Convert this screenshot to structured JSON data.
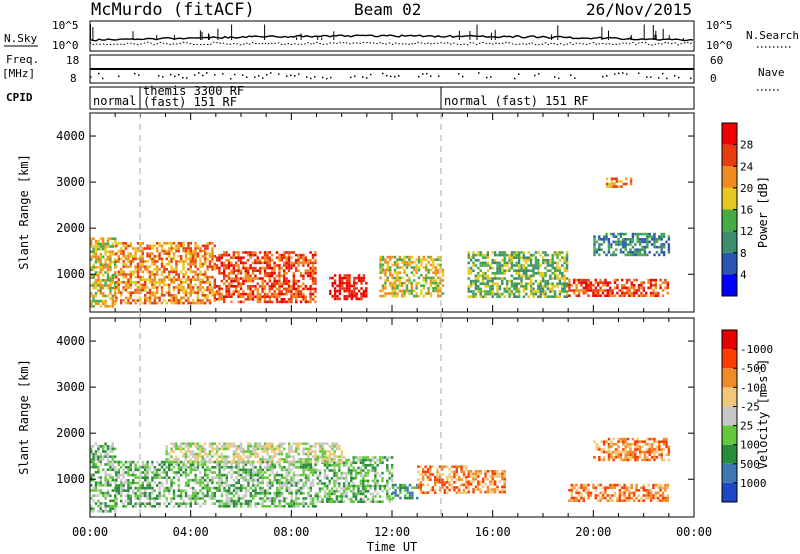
{
  "header": {
    "station": "McMurdo (fitACF)",
    "beam": "Beam 02",
    "date": "26/Nov/2015"
  },
  "strips": {
    "nsky_label": "N.Sky",
    "nsky_hi": "10^5",
    "nsky_lo": "10^0",
    "nsearch_hi": "10^5",
    "nsearch_lo": "10^0",
    "nsearch_label": "N.Search",
    "freq_label": "Freq.",
    "freq_unit": "[MHz]",
    "freq_hi": "18",
    "freq_lo": "8",
    "nave_hi": "60",
    "nave_lo": "0",
    "nave_label": "Nave",
    "cpid_label": "CPID",
    "cpid_segments": [
      {
        "label": "normal",
        "start_hour": 0,
        "end_hour": 2
      },
      {
        "label": "themis 3300 RF",
        "start_hour": 2,
        "end_hour": 14
      },
      {
        "label": "(fast) 151 RF",
        "start_hour": 2,
        "end_hour": 14
      },
      {
        "label": "normal (fast) 151 RF",
        "start_hour": 14,
        "end_hour": 24
      }
    ]
  },
  "chart_data": [
    {
      "type": "heatmap",
      "quantity": "power",
      "ylabel": "Slant Range [km]",
      "ylim": [
        180,
        4500
      ],
      "yticks": [
        "1000",
        "2000",
        "3000",
        "4000"
      ],
      "xlim_hours": [
        0,
        24
      ],
      "colorbar_label": "Power [dB]",
      "colorbar_ticks": [
        "4",
        "8",
        "12",
        "16",
        "20",
        "24",
        "28"
      ],
      "colorbar_colors": [
        "#0000ff",
        "#2a55b4",
        "#3c8c6e",
        "#46aa46",
        "#e6c81e",
        "#f08c1e",
        "#e63c0f",
        "#f00000"
      ],
      "regions": [
        {
          "start_hour": 0.0,
          "end_hour": 1.0,
          "range_km": [
            300,
            1800
          ],
          "level": 4
        },
        {
          "start_hour": 1.0,
          "end_hour": 5.0,
          "range_km": [
            350,
            1700
          ],
          "level": 5
        },
        {
          "start_hour": 5.0,
          "end_hour": 9.0,
          "range_km": [
            400,
            1500
          ],
          "level": 6
        },
        {
          "start_hour": 9.5,
          "end_hour": 11.0,
          "range_km": [
            450,
            1000
          ],
          "level": 7
        },
        {
          "start_hour": 11.5,
          "end_hour": 14.0,
          "range_km": [
            500,
            1400
          ],
          "level": 4
        },
        {
          "start_hour": 15.0,
          "end_hour": 19.0,
          "range_km": [
            500,
            1500
          ],
          "level": 3
        },
        {
          "start_hour": 19.0,
          "end_hour": 23.0,
          "range_km": [
            550,
            900
          ],
          "level": 6
        },
        {
          "start_hour": 20.0,
          "end_hour": 23.0,
          "range_km": [
            1400,
            1900
          ],
          "level": 2
        },
        {
          "start_hour": 20.5,
          "end_hour": 21.5,
          "range_km": [
            2900,
            3100
          ],
          "level": 5
        }
      ]
    },
    {
      "type": "heatmap",
      "quantity": "velocity",
      "ylabel": "Slant Range [km]",
      "ylim": [
        180,
        4500
      ],
      "yticks": [
        "1000",
        "2000",
        "3000",
        "4000"
      ],
      "xlim_hours": [
        0,
        24
      ],
      "colorbar_label": "Velocity [m s",
      "colorbar_label_superscript": "-1",
      "colorbar_label_close": "]",
      "colorbar_ticks": [
        "1000",
        "500",
        "100",
        "25",
        "-25",
        "-100",
        "-500",
        "-1000"
      ],
      "colorbar_colors": [
        "#1e46c8",
        "#3c78b4",
        "#288c3c",
        "#64c83c",
        "#c8c8c8",
        "#f0c878",
        "#f08c28",
        "#ff3c00",
        "#e60000"
      ],
      "regions": [
        {
          "start_hour": 0.0,
          "end_hour": 1.0,
          "range_km": [
            300,
            1800
          ],
          "level": 3
        },
        {
          "start_hour": 1.0,
          "end_hour": 9.0,
          "range_km": [
            400,
            1400
          ],
          "level": 3
        },
        {
          "start_hour": 9.0,
          "end_hour": 12.0,
          "range_km": [
            500,
            1500
          ],
          "level": 3
        },
        {
          "start_hour": 3.0,
          "end_hour": 10.0,
          "range_km": [
            1400,
            1800
          ],
          "level": 4
        },
        {
          "start_hour": 12.0,
          "end_hour": 13.0,
          "range_km": [
            600,
            900
          ],
          "level": 2
        },
        {
          "start_hour": 13.0,
          "end_hour": 15.0,
          "range_km": [
            700,
            1300
          ],
          "level": 6
        },
        {
          "start_hour": 15.0,
          "end_hour": 16.5,
          "range_km": [
            700,
            1200
          ],
          "level": 6
        },
        {
          "start_hour": 19.0,
          "end_hour": 23.0,
          "range_km": [
            550,
            900
          ],
          "level": 6
        },
        {
          "start_hour": 20.0,
          "end_hour": 23.0,
          "range_km": [
            1400,
            1900
          ],
          "level": 6
        }
      ]
    }
  ],
  "xaxis": {
    "ticks": [
      "00:00",
      "04:00",
      "08:00",
      "12:00",
      "16:00",
      "20:00",
      "00:00"
    ],
    "label": "Time UT"
  }
}
